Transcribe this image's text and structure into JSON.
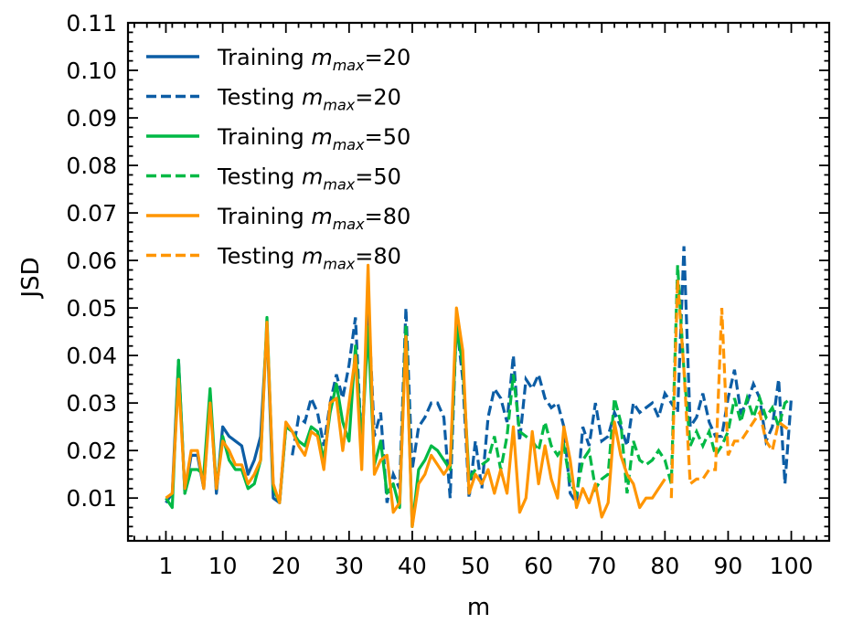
{
  "chart_data": {
    "type": "line",
    "xlabel": "m",
    "ylabel": "JSD",
    "xlim": [
      -5,
      106
    ],
    "ylim": [
      0.001,
      0.11
    ],
    "x_ticks": [
      1,
      10,
      20,
      30,
      40,
      50,
      60,
      70,
      80,
      90,
      100
    ],
    "x_tick_labels": [
      "1",
      "10",
      "20",
      "30",
      "40",
      "50",
      "60",
      "70",
      "80",
      "90",
      "100"
    ],
    "y_ticks": [
      0.01,
      0.02,
      0.03,
      0.04,
      0.05,
      0.06,
      0.07,
      0.08,
      0.09,
      0.1,
      0.11
    ],
    "y_tick_labels": [
      "0.01",
      "0.02",
      "0.03",
      "0.04",
      "0.05",
      "0.06",
      "0.07",
      "0.08",
      "0.09",
      "0.10",
      "0.11"
    ],
    "legend_position": "top-left",
    "series": [
      {
        "name": "Training m_max=20",
        "legend_prefix": "Training ",
        "legend_math": "m",
        "legend_sub": "max",
        "legend_suffix": "=20",
        "color": "#0C5DA5",
        "dash": "solid",
        "x": [
          1,
          2,
          3,
          4,
          5,
          6,
          7,
          8,
          9,
          10,
          11,
          12,
          13,
          14,
          15,
          16,
          17,
          18,
          19,
          20
        ],
        "values": [
          0.009,
          0.011,
          0.039,
          0.011,
          0.019,
          0.019,
          0.012,
          0.032,
          0.011,
          0.025,
          0.023,
          0.022,
          0.021,
          0.015,
          0.018,
          0.023,
          0.046,
          0.01,
          0.009,
          0.025
        ]
      },
      {
        "name": "Testing m_max=20",
        "legend_prefix": "Testing ",
        "legend_math": "m",
        "legend_sub": "max",
        "legend_suffix": "=20",
        "color": "#0C5DA5",
        "dash": "dashed",
        "x": [
          21,
          22,
          23,
          24,
          25,
          26,
          27,
          28,
          29,
          30,
          31,
          32,
          33,
          34,
          35,
          36,
          37,
          38,
          39,
          40,
          41,
          42,
          43,
          44,
          45,
          46,
          47,
          48,
          49,
          50,
          51,
          52,
          53,
          54,
          55,
          56,
          57,
          58,
          59,
          60,
          61,
          62,
          63,
          64,
          65,
          66,
          67,
          68,
          69,
          70,
          71,
          72,
          73,
          74,
          75,
          76,
          77,
          78,
          79,
          80,
          81,
          82,
          83,
          84,
          85,
          86,
          87,
          88,
          89,
          90,
          91,
          92,
          93,
          94,
          95,
          96,
          97,
          98,
          99,
          100
        ],
        "values": [
          0.019,
          0.027,
          0.026,
          0.031,
          0.028,
          0.021,
          0.03,
          0.036,
          0.031,
          0.038,
          0.048,
          0.02,
          0.052,
          0.023,
          0.028,
          0.009,
          0.015,
          0.012,
          0.05,
          0.016,
          0.025,
          0.027,
          0.03,
          0.03,
          0.027,
          0.01,
          0.047,
          0.035,
          0.01,
          0.022,
          0.012,
          0.027,
          0.033,
          0.031,
          0.026,
          0.04,
          0.022,
          0.035,
          0.033,
          0.036,
          0.031,
          0.029,
          0.03,
          0.025,
          0.011,
          0.009,
          0.025,
          0.021,
          0.03,
          0.022,
          0.023,
          0.028,
          0.025,
          0.021,
          0.03,
          0.028,
          0.029,
          0.03,
          0.027,
          0.032,
          0.03,
          0.028,
          0.063,
          0.025,
          0.027,
          0.032,
          0.026,
          0.023,
          0.023,
          0.031,
          0.037,
          0.028,
          0.03,
          0.034,
          0.031,
          0.022,
          0.025,
          0.035,
          0.013,
          0.031
        ]
      },
      {
        "name": "Training m_max=50",
        "legend_prefix": "Training ",
        "legend_math": "m",
        "legend_sub": "max",
        "legend_suffix": "=50",
        "color": "#00B945",
        "dash": "solid",
        "x": [
          1,
          2,
          3,
          4,
          5,
          6,
          7,
          8,
          9,
          10,
          11,
          12,
          13,
          14,
          15,
          16,
          17,
          18,
          19,
          20,
          21,
          22,
          23,
          24,
          25,
          26,
          27,
          28,
          29,
          30,
          31,
          32,
          33,
          34,
          35,
          36,
          37,
          38,
          39,
          40,
          41,
          42,
          43,
          44,
          45,
          46,
          47,
          48,
          49,
          50
        ],
        "values": [
          0.01,
          0.008,
          0.039,
          0.011,
          0.016,
          0.016,
          0.015,
          0.033,
          0.012,
          0.023,
          0.018,
          0.016,
          0.016,
          0.012,
          0.013,
          0.018,
          0.048,
          0.012,
          0.009,
          0.025,
          0.024,
          0.022,
          0.021,
          0.025,
          0.024,
          0.018,
          0.028,
          0.034,
          0.026,
          0.022,
          0.042,
          0.021,
          0.046,
          0.017,
          0.022,
          0.011,
          0.013,
          0.008,
          0.046,
          0.004,
          0.016,
          0.018,
          0.021,
          0.02,
          0.018,
          0.016,
          0.046,
          0.038,
          0.014,
          0.016
        ]
      },
      {
        "name": "Testing m_max=50",
        "legend_prefix": "Testing ",
        "legend_math": "m",
        "legend_sub": "max",
        "legend_suffix": "=50",
        "color": "#00B945",
        "dash": "dashed",
        "x": [
          51,
          52,
          53,
          54,
          55,
          56,
          57,
          58,
          59,
          60,
          61,
          62,
          63,
          64,
          65,
          66,
          67,
          68,
          69,
          70,
          71,
          72,
          73,
          74,
          75,
          76,
          77,
          78,
          79,
          80,
          81,
          82,
          83,
          84,
          85,
          86,
          87,
          88,
          89,
          90,
          91,
          92,
          93,
          94,
          95,
          96,
          97,
          98,
          99,
          100
        ],
        "values": [
          0.017,
          0.018,
          0.023,
          0.016,
          0.023,
          0.036,
          0.024,
          0.023,
          0.022,
          0.02,
          0.026,
          0.021,
          0.019,
          0.021,
          0.013,
          0.011,
          0.018,
          0.02,
          0.012,
          0.014,
          0.015,
          0.031,
          0.026,
          0.011,
          0.022,
          0.018,
          0.017,
          0.018,
          0.02,
          0.018,
          0.013,
          0.059,
          0.037,
          0.021,
          0.024,
          0.021,
          0.024,
          0.019,
          0.021,
          0.024,
          0.031,
          0.026,
          0.031,
          0.027,
          0.031,
          0.027,
          0.029,
          0.025,
          0.03,
          0.031
        ]
      },
      {
        "name": "Training m_max=80",
        "legend_prefix": "Training ",
        "legend_math": "m",
        "legend_sub": "max",
        "legend_suffix": "=80",
        "color": "#FF9500",
        "dash": "solid",
        "x": [
          1,
          2,
          3,
          4,
          5,
          6,
          7,
          8,
          9,
          10,
          11,
          12,
          13,
          14,
          15,
          16,
          17,
          18,
          19,
          20,
          21,
          22,
          23,
          24,
          25,
          26,
          27,
          28,
          29,
          30,
          31,
          32,
          33,
          34,
          35,
          36,
          37,
          38,
          39,
          40,
          41,
          42,
          43,
          44,
          45,
          46,
          47,
          48,
          49,
          50,
          51,
          52,
          53,
          54,
          55,
          56,
          57,
          58,
          59,
          60,
          61,
          62,
          63,
          64,
          65,
          66,
          67,
          68,
          69,
          70,
          71,
          72,
          73,
          74,
          75,
          76,
          77,
          78,
          79,
          80
        ],
        "values": [
          0.01,
          0.011,
          0.035,
          0.012,
          0.02,
          0.02,
          0.012,
          0.03,
          0.012,
          0.022,
          0.02,
          0.017,
          0.017,
          0.013,
          0.015,
          0.018,
          0.047,
          0.013,
          0.009,
          0.026,
          0.024,
          0.021,
          0.019,
          0.024,
          0.023,
          0.016,
          0.03,
          0.031,
          0.02,
          0.03,
          0.04,
          0.016,
          0.059,
          0.015,
          0.018,
          0.019,
          0.007,
          0.009,
          0.044,
          0.004,
          0.013,
          0.015,
          0.019,
          0.017,
          0.015,
          0.017,
          0.05,
          0.041,
          0.011,
          0.015,
          0.013,
          0.016,
          0.011,
          0.016,
          0.011,
          0.025,
          0.007,
          0.01,
          0.024,
          0.013,
          0.021,
          0.014,
          0.01,
          0.025,
          0.018,
          0.008,
          0.012,
          0.009,
          0.013,
          0.006,
          0.009,
          0.026,
          0.019,
          0.015,
          0.013,
          0.008,
          0.01,
          0.01,
          0.012,
          0.014
        ]
      },
      {
        "name": "Testing m_max=80",
        "legend_prefix": "Testing ",
        "legend_math": "m",
        "legend_sub": "max",
        "legend_suffix": "=80",
        "color": "#FF9500",
        "dash": "dashed",
        "x": [
          81,
          82,
          83,
          84,
          85,
          86,
          87,
          88,
          89,
          90,
          91,
          92,
          93,
          94,
          95,
          96,
          97,
          98,
          99,
          100
        ],
        "values": [
          0.01,
          0.056,
          0.037,
          0.013,
          0.014,
          0.014,
          0.016,
          0.016,
          0.05,
          0.019,
          0.022,
          0.022,
          0.024,
          0.026,
          0.028,
          0.022,
          0.02,
          0.026,
          0.025,
          0.024
        ]
      }
    ]
  }
}
